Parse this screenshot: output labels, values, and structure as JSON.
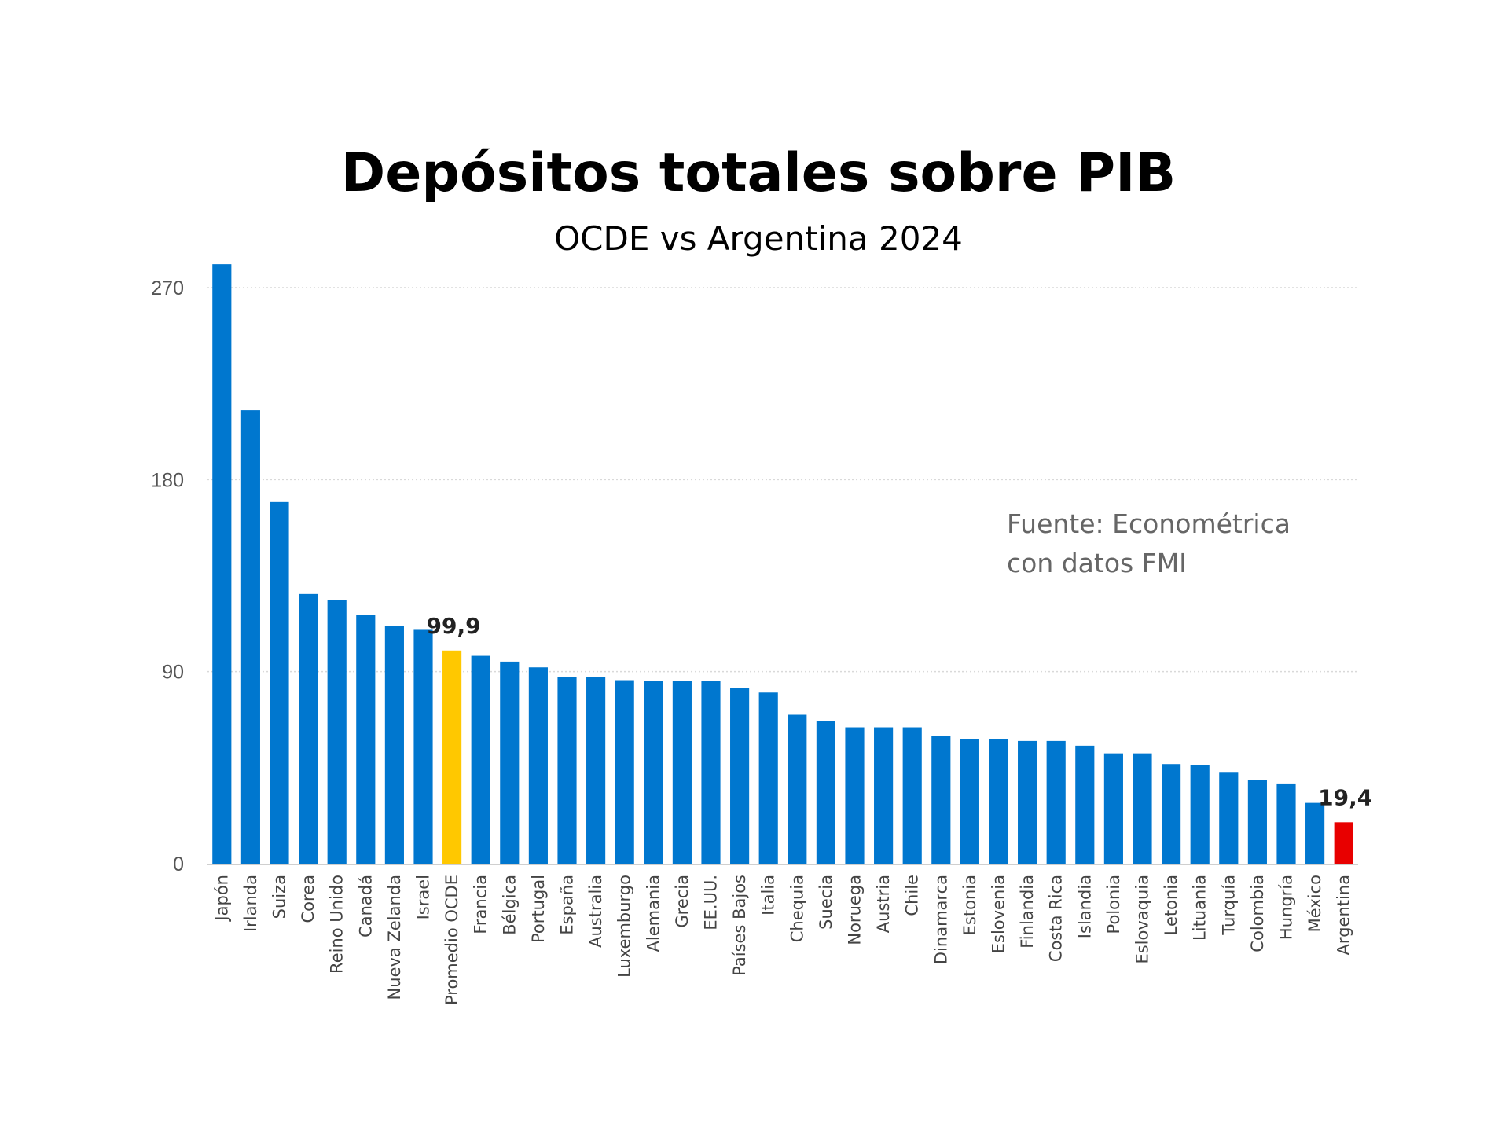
{
  "chart_data": {
    "type": "bar",
    "title": "Depósitos totales sobre PIB",
    "subtitle": "OCDE vs Argentina 2024",
    "source_note": [
      "Fuente: Econométrica",
      "con datos FMI"
    ],
    "xlabel": "",
    "ylabel": "",
    "ylim": [
      0,
      285
    ],
    "yticks": [
      0,
      90,
      180,
      270
    ],
    "grid": true,
    "categories": [
      "Japón",
      "Irlanda",
      "Suiza",
      "Corea",
      "Reino Unido",
      "Canadá",
      "Nueva Zelanda",
      "Israel",
      "Promedio OCDE",
      "Francia",
      "Bélgica",
      "Portugal",
      "España",
      "Australia",
      "Luxemburgo",
      "Alemania",
      "Grecia",
      "EE.UU.",
      "Países Bajos",
      "Italia",
      "Chequia",
      "Suecia",
      "Noruega",
      "Austria",
      "Chile",
      "Dinamarca",
      "Estonia",
      "Eslovenia",
      "Finlandia",
      "Costa Rica",
      "Islandia",
      "Polonia",
      "Eslovaquia",
      "Letonia",
      "Lituania",
      "Turquía",
      "Colombia",
      "Hungría",
      "México",
      "Argentina"
    ],
    "values": [
      281,
      212.5,
      169.5,
      126.4,
      123.7,
      116.4,
      111.5,
      109.6,
      99.9,
      97.4,
      94.7,
      92,
      87.4,
      87.4,
      86,
      85.6,
      85.6,
      85.6,
      82.5,
      80.2,
      69.8,
      67,
      63.9,
      63.9,
      63.9,
      59.8,
      58.4,
      58.4,
      57.5,
      57.5,
      55.3,
      51.7,
      51.7,
      46.7,
      46.2,
      43,
      39.4,
      37.6,
      28.5,
      19.4
    ],
    "data_labels": {
      "Promedio OCDE": "99,9",
      "Argentina": "19,4"
    },
    "colors": {
      "default": "#0077CF",
      "Promedio OCDE": "#FFC800",
      "Argentina": "#E80000"
    }
  }
}
